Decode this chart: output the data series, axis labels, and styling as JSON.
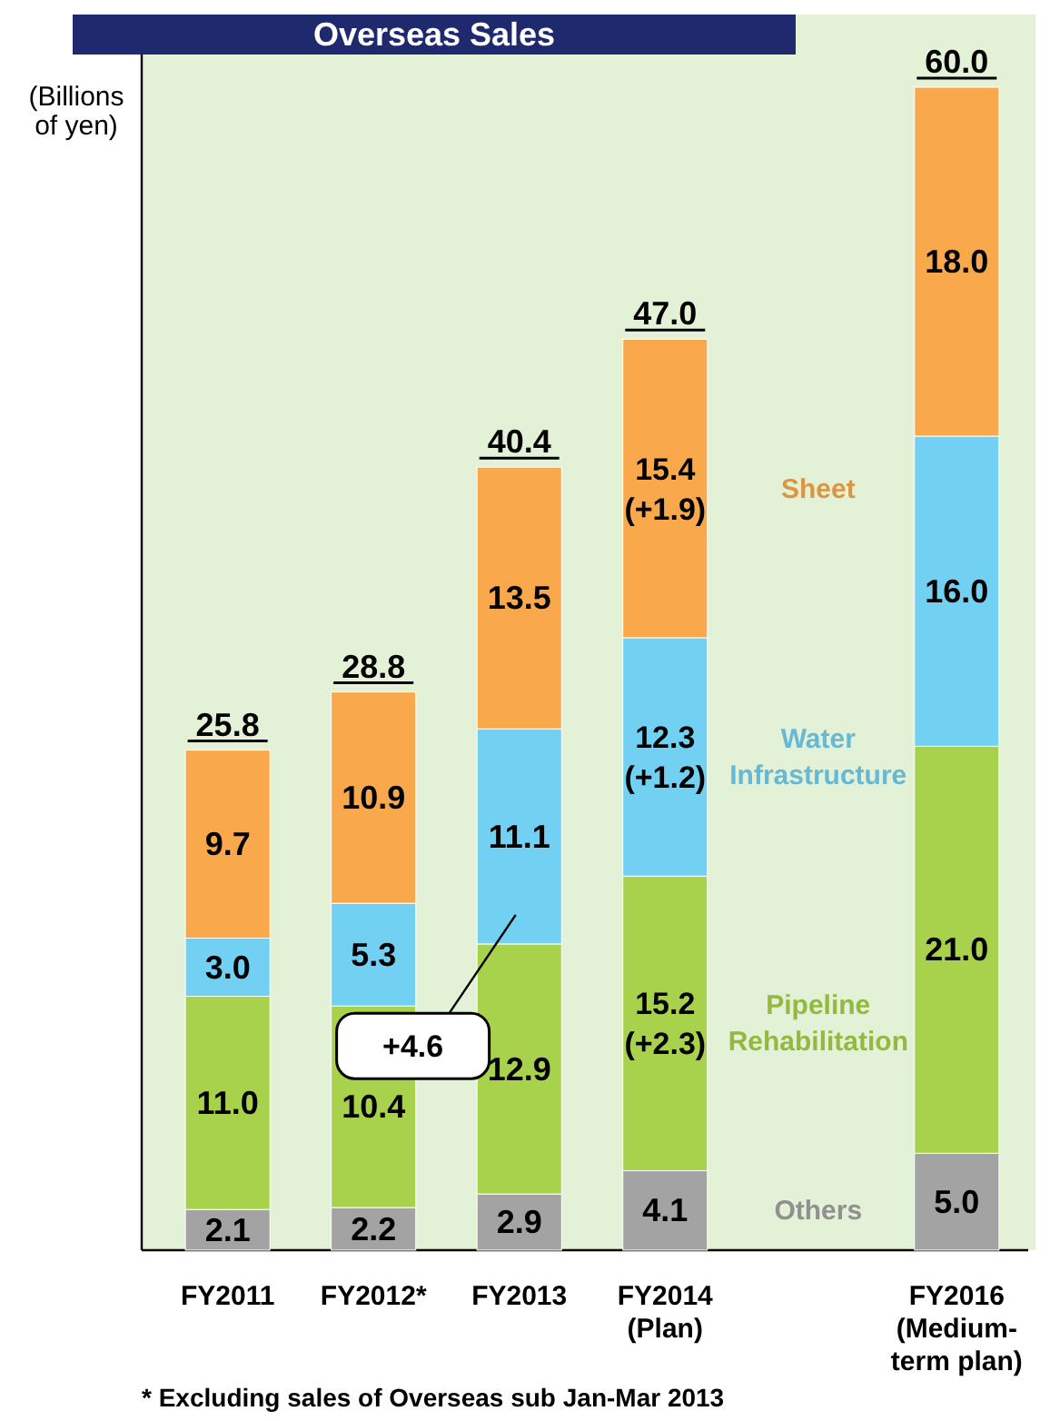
{
  "chart_data": {
    "type": "bar",
    "stacked": true,
    "title": "Overseas Sales",
    "ylabel": "(Billions\nof yen)",
    "categories": [
      "FY2011",
      "FY2012*",
      "FY2013",
      "FY2014\n(Plan)",
      null,
      "FY2016\n(Medium-\nterm plan)"
    ],
    "series": [
      {
        "name": "Others",
        "color": "#a3a3a3",
        "values": [
          2.1,
          2.2,
          2.9,
          4.1,
          null,
          5.0
        ],
        "value_labels": [
          "2.1",
          "2.2",
          "2.9",
          "4.1",
          null,
          "5.0"
        ]
      },
      {
        "name": "Pipeline\nRehabilitation",
        "color": "#a8d24c",
        "values": [
          11.0,
          10.4,
          12.9,
          15.2,
          null,
          21.0
        ],
        "value_labels": [
          "11.0",
          "10.4",
          "12.9",
          "15.2\n(+2.3)",
          null,
          "21.0"
        ]
      },
      {
        "name": "Water\nInfrastructure",
        "color": "#72d0f2",
        "values": [
          3.0,
          5.3,
          11.1,
          12.3,
          null,
          16.0
        ],
        "value_labels": [
          "3.0",
          "5.3",
          "11.1",
          "12.3\n(+1.2)",
          null,
          "16.0"
        ]
      },
      {
        "name": "Sheet",
        "color": "#f9a94c",
        "values": [
          9.7,
          10.9,
          13.5,
          15.4,
          null,
          18.0
        ],
        "value_labels": [
          "9.7",
          "10.9",
          "13.5",
          "15.4\n(+1.9)",
          null,
          "18.0"
        ]
      }
    ],
    "totals": [
      "25.8",
      "28.8",
      "40.4",
      "47.0",
      null,
      "60.0"
    ],
    "legend": false,
    "annotations": [
      "+4.6",
      "* Excluding sales of Overseas sub Jan-Mar 2013"
    ]
  }
}
